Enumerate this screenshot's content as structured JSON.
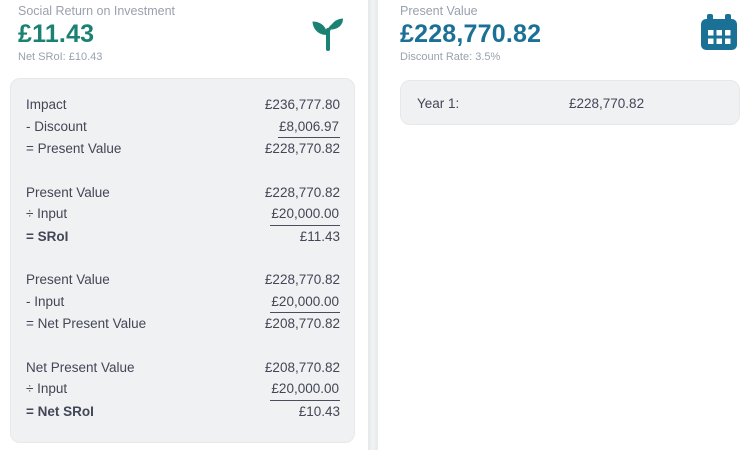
{
  "sroi_panel": {
    "title": "Social Return on Investment",
    "value": "£11.43",
    "subtitle": "Net SRoI: £10.43",
    "icon": "sprout-icon",
    "calc_groups": [
      {
        "rows": [
          {
            "label": "Impact",
            "value": "£236,777.80",
            "underline": false,
            "bold": false
          },
          {
            "label": "- Discount",
            "value": "£8,006.97",
            "underline": true,
            "bold": false
          },
          {
            "label": "= Present Value",
            "value": "£228,770.82",
            "underline": false,
            "bold": false
          }
        ]
      },
      {
        "rows": [
          {
            "label": "Present Value",
            "value": "£228,770.82",
            "underline": false,
            "bold": false
          },
          {
            "label": "÷ Input",
            "value": "£20,000.00",
            "underline": true,
            "bold": false
          },
          {
            "label": "= SRoI",
            "value": "£11.43",
            "underline": false,
            "bold": true
          }
        ]
      },
      {
        "rows": [
          {
            "label": "Present Value",
            "value": "£228,770.82",
            "underline": false,
            "bold": false
          },
          {
            "label": "- Input",
            "value": "£20,000.00",
            "underline": true,
            "bold": false
          },
          {
            "label": "= Net Present Value",
            "value": "£208,770.82",
            "underline": false,
            "bold": false
          }
        ]
      },
      {
        "rows": [
          {
            "label": "Net Present Value",
            "value": "£208,770.82",
            "underline": false,
            "bold": false
          },
          {
            "label": "÷ Input",
            "value": "£20,000.00",
            "underline": true,
            "bold": false
          },
          {
            "label": "= Net SRoI",
            "value": "£10.43",
            "underline": false,
            "bold": true
          }
        ]
      }
    ]
  },
  "present_value_panel": {
    "title": "Present Value",
    "value": "£228,770.82",
    "subtitle": "Discount Rate: 3.5%",
    "icon": "calendar-icon",
    "years": [
      {
        "label": "Year 1:",
        "value": "£228,770.82"
      }
    ]
  },
  "colors": {
    "teal": "#1b8173",
    "blue": "#1b7095",
    "card_bg": "#f0f1f2",
    "card_border": "#e6e8ea",
    "text": "#424656",
    "muted": "#99a1af",
    "underline": "#4a4e5c",
    "divider_edge": "#e3e8ea",
    "divider_mid": "#f2f4f5"
  }
}
